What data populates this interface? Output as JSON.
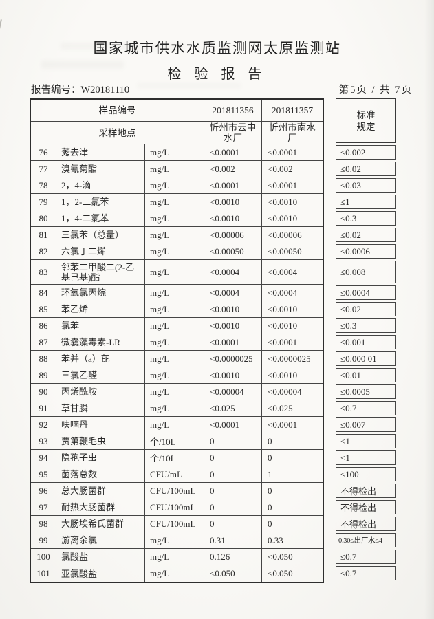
{
  "colors": {
    "ink": "#2b2b2b",
    "paper": "#f8f7f4",
    "table_border": "#454545"
  },
  "header": {
    "station_title": "国家城市供水水质监测网太原监测站",
    "report_title": "检 验 报 告",
    "report_no_label": "报告编号：",
    "report_no": "W20181110",
    "page_info": "第5页 / 共 7页"
  },
  "table": {
    "header": {
      "sample_id_label": "样品编号",
      "sample_ids": [
        "201811356",
        "201811357"
      ],
      "location_label": "采样地点",
      "locations": [
        "忻州市云中水厂",
        "忻州市南水厂"
      ],
      "standard_label": "标准规定"
    },
    "rows": [
      {
        "no": "76",
        "item": "莠去津",
        "unit": "mg/L",
        "v1": "<0.0001",
        "v2": "<0.0001",
        "std": "≤0.002"
      },
      {
        "no": "77",
        "item": "溴氰菊酯",
        "unit": "mg/L",
        "v1": "<0.002",
        "v2": "<0.002",
        "std": "≤0.02"
      },
      {
        "no": "78",
        "item": "2，4-滴",
        "unit": "mg/L",
        "v1": "<0.0001",
        "v2": "<0.0001",
        "std": "≤0.03"
      },
      {
        "no": "79",
        "item": "1，2-二氯苯",
        "unit": "mg/L",
        "v1": "<0.0010",
        "v2": "<0.0010",
        "std": "≤1"
      },
      {
        "no": "80",
        "item": "1，4-二氯苯",
        "unit": "mg/L",
        "v1": "<0.0010",
        "v2": "<0.0010",
        "std": "≤0.3"
      },
      {
        "no": "81",
        "item": "三氯苯（总量）",
        "unit": "mg/L",
        "v1": "<0.00006",
        "v2": "<0.00006",
        "std": "≤0.02"
      },
      {
        "no": "82",
        "item": "六氯丁二烯",
        "unit": "mg/L",
        "v1": "<0.00050",
        "v2": "<0.00050",
        "std": "≤0.0006"
      },
      {
        "no": "83",
        "item": "邻苯二甲酸二(2-乙基己基)酯",
        "unit": "mg/L",
        "v1": "<0.0004",
        "v2": "<0.0004",
        "std": "≤0.008"
      },
      {
        "no": "84",
        "item": "环氧氯丙烷",
        "unit": "mg/L",
        "v1": "<0.0004",
        "v2": "<0.0004",
        "std": "≤0.0004"
      },
      {
        "no": "85",
        "item": "苯乙烯",
        "unit": "mg/L",
        "v1": "<0.0010",
        "v2": "<0.0010",
        "std": "≤0.02"
      },
      {
        "no": "86",
        "item": "氯苯",
        "unit": "mg/L",
        "v1": "<0.0010",
        "v2": "<0.0010",
        "std": "≤0.3"
      },
      {
        "no": "87",
        "item": "微囊藻毒素-LR",
        "unit": "mg/L",
        "v1": "<0.0001",
        "v2": "<0.0001",
        "std": "≤0.001"
      },
      {
        "no": "88",
        "item": "苯并（a）芘",
        "unit": "mg/L",
        "v1": "<0.0000025",
        "v2": "<0.0000025",
        "std": "≤0.000 01"
      },
      {
        "no": "89",
        "item": "三氯乙醛",
        "unit": "mg/L",
        "v1": "<0.0010",
        "v2": "<0.0010",
        "std": "≤0.01"
      },
      {
        "no": "90",
        "item": "丙烯酰胺",
        "unit": "mg/L",
        "v1": "<0.00004",
        "v2": "<0.00004",
        "std": "≤0.0005"
      },
      {
        "no": "91",
        "item": "草甘膦",
        "unit": "mg/L",
        "v1": "<0.025",
        "v2": "<0.025",
        "std": "≤0.7"
      },
      {
        "no": "92",
        "item": "呋喃丹",
        "unit": "mg/L",
        "v1": "<0.0001",
        "v2": "<0.0001",
        "std": "≤0.007"
      },
      {
        "no": "93",
        "item": "贾第鞭毛虫",
        "unit": "个/10L",
        "v1": "0",
        "v2": "0",
        "std": "<1"
      },
      {
        "no": "94",
        "item": "隐孢子虫",
        "unit": "个/10L",
        "v1": "0",
        "v2": "0",
        "std": "<1"
      },
      {
        "no": "95",
        "item": "菌落总数",
        "unit": "CFU/mL",
        "v1": "0",
        "v2": "1",
        "std": "≤100"
      },
      {
        "no": "96",
        "item": "总大肠菌群",
        "unit": "CFU/100mL",
        "v1": "0",
        "v2": "0",
        "std": "不得检出"
      },
      {
        "no": "97",
        "item": "耐热大肠菌群",
        "unit": "CFU/100mL",
        "v1": "0",
        "v2": "0",
        "std": "不得检出"
      },
      {
        "no": "98",
        "item": "大肠埃希氏菌群",
        "unit": "CFU/100mL",
        "v1": "0",
        "v2": "0",
        "std": "不得检出"
      },
      {
        "no": "99",
        "item": "游离余氯",
        "unit": "mg/L",
        "v1": "0.31",
        "v2": "0.33",
        "std": "0.30≤出厂水≤4"
      },
      {
        "no": "100",
        "item": "氯酸盐",
        "unit": "mg/L",
        "v1": "0.126",
        "v2": "<0.050",
        "std": "≤0.7"
      },
      {
        "no": "101",
        "item": "亚氯酸盐",
        "unit": "mg/L",
        "v1": "<0.050",
        "v2": "<0.050",
        "std": "≤0.7"
      }
    ]
  }
}
